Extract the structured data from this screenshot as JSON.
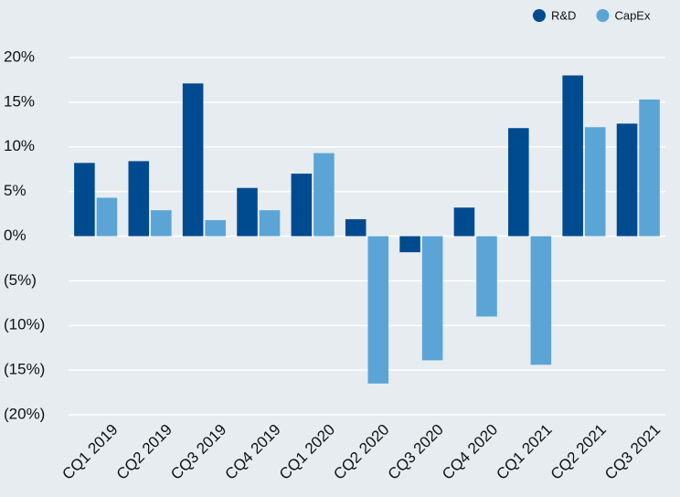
{
  "chart_data": {
    "type": "bar",
    "categories": [
      "CQ1 2019",
      "CQ2 2019",
      "CQ3 2019",
      "CQ4 2019",
      "CQ1 2020",
      "CQ2 2020",
      "CQ3 2020",
      "CQ4 2020",
      "CQ1 2021",
      "CQ2 2021",
      "CQ3 2021"
    ],
    "series": [
      {
        "name": "R&D",
        "color": "#004a8f",
        "values": [
          8.2,
          8.4,
          17.1,
          5.4,
          7.0,
          1.9,
          -1.8,
          3.2,
          12.1,
          18.0,
          12.6
        ]
      },
      {
        "name": "CapEx",
        "color": "#5ba4d6",
        "values": [
          4.3,
          2.9,
          1.8,
          2.9,
          9.3,
          -16.5,
          -13.9,
          -9.0,
          -14.4,
          12.2,
          15.3
        ]
      }
    ],
    "ylim": [
      -20,
      20
    ],
    "yticks": [
      {
        "value": 20,
        "label": "20%"
      },
      {
        "value": 15,
        "label": "15%"
      },
      {
        "value": 10,
        "label": "10%"
      },
      {
        "value": 5,
        "label": "5%"
      },
      {
        "value": 0,
        "label": "0%"
      },
      {
        "value": -5,
        "label": "(5%)"
      },
      {
        "value": -10,
        "label": "(10%)"
      },
      {
        "value": -15,
        "label": "(15%)"
      },
      {
        "value": -20,
        "label": "(20%)"
      }
    ],
    "grid": true,
    "legend": "top-right"
  }
}
